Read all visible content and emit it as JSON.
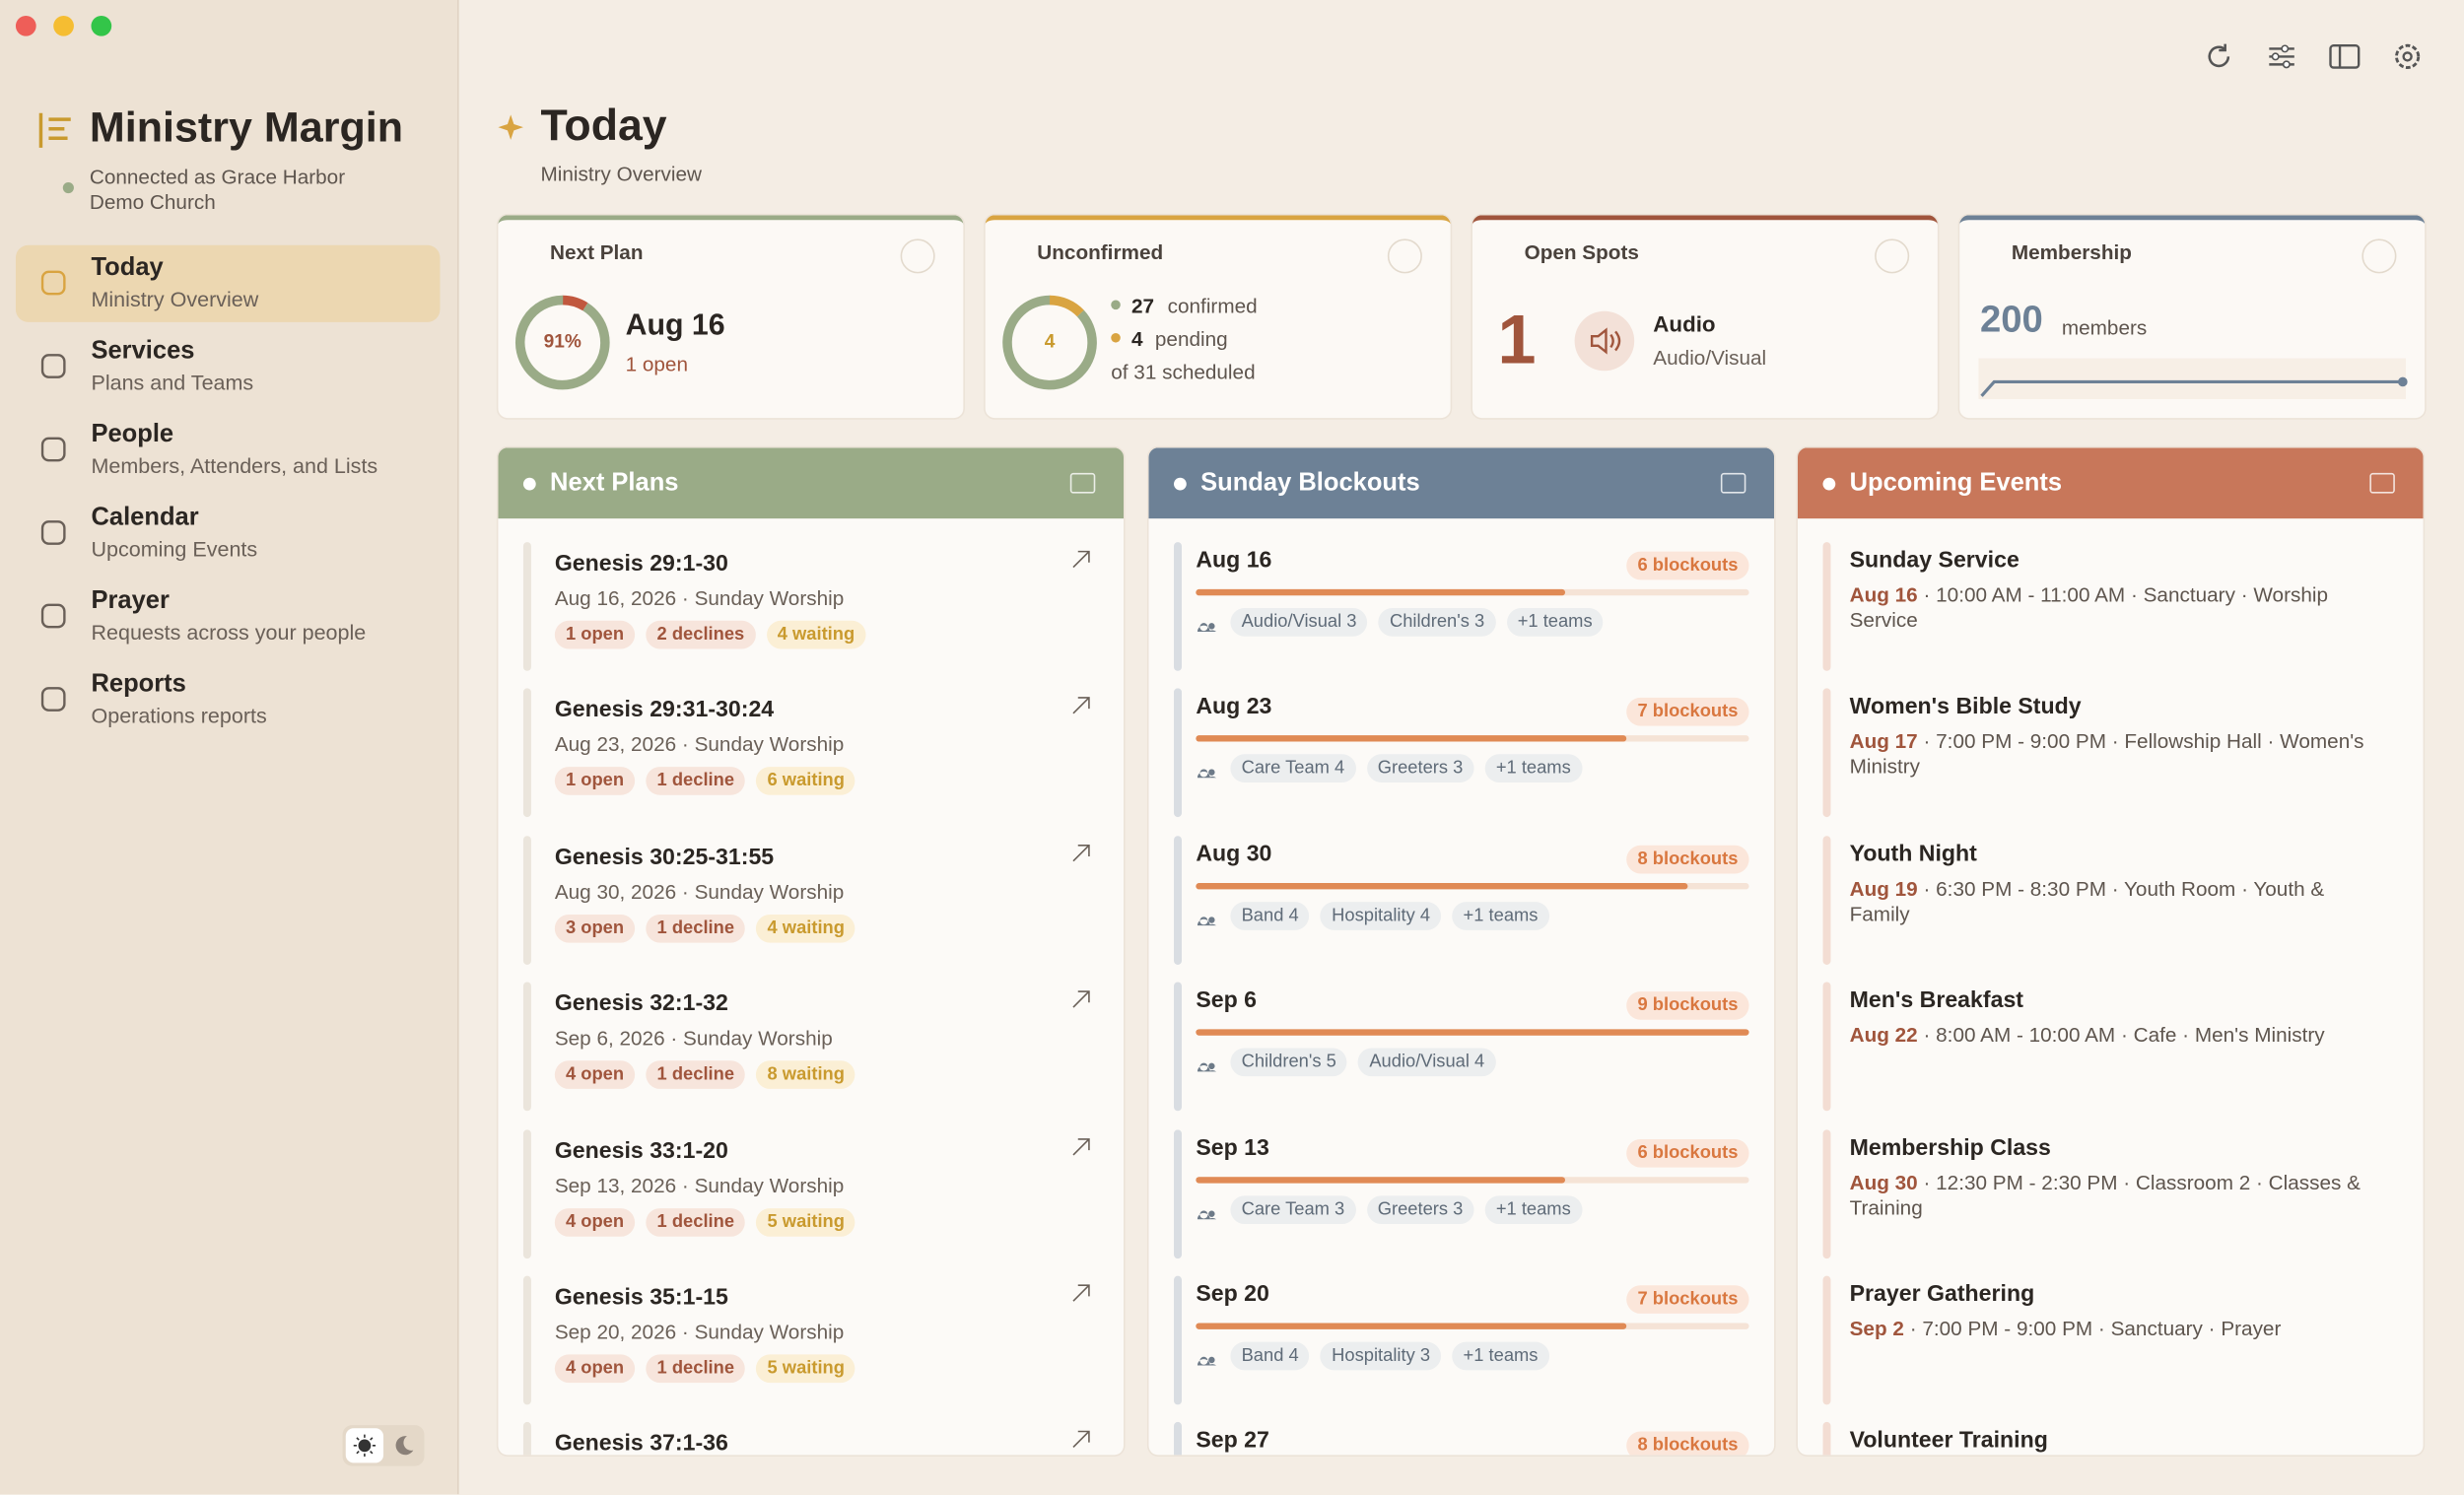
{
  "window": {
    "app_title": "Ministry Margin",
    "status": "Connected as Grace Harbor Demo Church"
  },
  "nav": [
    {
      "label": "Today",
      "sub": "Ministry Overview"
    },
    {
      "label": "Services",
      "sub": "Plans and Teams"
    },
    {
      "label": "People",
      "sub": "Members, Attenders, and Lists"
    },
    {
      "label": "Calendar",
      "sub": "Upcoming Events"
    },
    {
      "label": "Prayer",
      "sub": "Requests across your people"
    },
    {
      "label": "Reports",
      "sub": "Operations reports"
    }
  ],
  "header": {
    "title": "Today",
    "subtitle": "Ministry Overview"
  },
  "cards": {
    "next_plan": {
      "title": "Next Plan",
      "progress": {
        "value": 91,
        "label": "91%"
      },
      "date": "Aug 16",
      "note": "1 open"
    },
    "unconfirmed": {
      "title": "Unconfirmed",
      "confirmed": 27,
      "confirmed_label": "confirmed",
      "pending": 4,
      "pending_label": "pending",
      "scheduled": "of 31 scheduled"
    },
    "open_spots": {
      "title": "Open Spots",
      "count": 1,
      "role": "Audio",
      "team": "Audio/Visual"
    },
    "membership": {
      "title": "Membership",
      "count": 200,
      "unit": "members"
    }
  },
  "next_plans": {
    "title": "Next Plans",
    "items": [
      {
        "title": "Genesis 29:1-30",
        "date": "Aug 16, 2026 · Sunday Worship",
        "tags": [
          "1 open",
          "2 declines",
          "4 waiting"
        ]
      },
      {
        "title": "Genesis 29:31-30:24",
        "date": "Aug 23, 2026 · Sunday Worship",
        "tags": [
          "1 open",
          "1 decline",
          "6 waiting"
        ]
      },
      {
        "title": "Genesis 30:25-31:55",
        "date": "Aug 30, 2026 · Sunday Worship",
        "tags": [
          "3 open",
          "1 decline",
          "4 waiting"
        ]
      },
      {
        "title": "Genesis 32:1-32",
        "date": "Sep 6, 2026 · Sunday Worship",
        "tags": [
          "4 open",
          "1 decline",
          "8 waiting"
        ]
      },
      {
        "title": "Genesis 33:1-20",
        "date": "Sep 13, 2026 · Sunday Worship",
        "tags": [
          "4 open",
          "1 decline",
          "5 waiting"
        ]
      },
      {
        "title": "Genesis 35:1-15",
        "date": "Sep 20, 2026 · Sunday Worship",
        "tags": [
          "4 open",
          "1 decline",
          "5 waiting"
        ]
      },
      {
        "title": "Genesis 37:1-36",
        "date": "",
        "tags": []
      }
    ]
  },
  "sunday_blockouts": {
    "title": "Sunday Blockouts",
    "items": [
      {
        "date": "Aug 16",
        "blockouts": 6,
        "blockouts_label": "6 blockouts",
        "teams": [
          "Audio/Visual 3",
          "Children's 3",
          "+1 teams"
        ]
      },
      {
        "date": "Aug 23",
        "blockouts": 7,
        "blockouts_label": "7 blockouts",
        "teams": [
          "Care Team 4",
          "Greeters 3",
          "+1 teams"
        ]
      },
      {
        "date": "Aug 30",
        "blockouts": 8,
        "blockouts_label": "8 blockouts",
        "teams": [
          "Band 4",
          "Hospitality 4",
          "+1 teams"
        ]
      },
      {
        "date": "Sep 6",
        "blockouts": 9,
        "blockouts_label": "9 blockouts",
        "teams": [
          "Children's 5",
          "Audio/Visual 4"
        ]
      },
      {
        "date": "Sep 13",
        "blockouts": 6,
        "blockouts_label": "6 blockouts",
        "teams": [
          "Care Team 3",
          "Greeters 3",
          "+1 teams"
        ]
      },
      {
        "date": "Sep 20",
        "blockouts": 7,
        "blockouts_label": "7 blockouts",
        "teams": [
          "Band 4",
          "Hospitality 3",
          "+1 teams"
        ]
      },
      {
        "date": "Sep 27",
        "blockouts": 8,
        "blockouts_label": "8 blockouts",
        "teams": []
      }
    ]
  },
  "upcoming_events": {
    "title": "Upcoming Events",
    "items": [
      {
        "title": "Sunday Service",
        "date": "Aug 16",
        "detail": "· 10:00 AM - 11:00 AM · Sanctuary · Worship Service"
      },
      {
        "title": "Women's Bible Study",
        "date": "Aug 17",
        "detail": "· 7:00 PM - 9:00 PM · Fellowship Hall · Women's Ministry"
      },
      {
        "title": "Youth Night",
        "date": "Aug 19",
        "detail": "· 6:30 PM - 8:30 PM · Youth Room · Youth & Family"
      },
      {
        "title": "Men's Breakfast",
        "date": "Aug 22",
        "detail": "· 8:00 AM - 10:00 AM · Cafe · Men's Ministry"
      },
      {
        "title": "Membership Class",
        "date": "Aug 30",
        "detail": "· 12:30 PM - 2:30 PM · Classroom 2 · Classes & Training"
      },
      {
        "title": "Prayer Gathering",
        "date": "Sep 2",
        "detail": "· 7:00 PM - 9:00 PM · Sanctuary · Prayer"
      },
      {
        "title": "Volunteer Training",
        "date": "",
        "detail": ""
      }
    ]
  }
}
